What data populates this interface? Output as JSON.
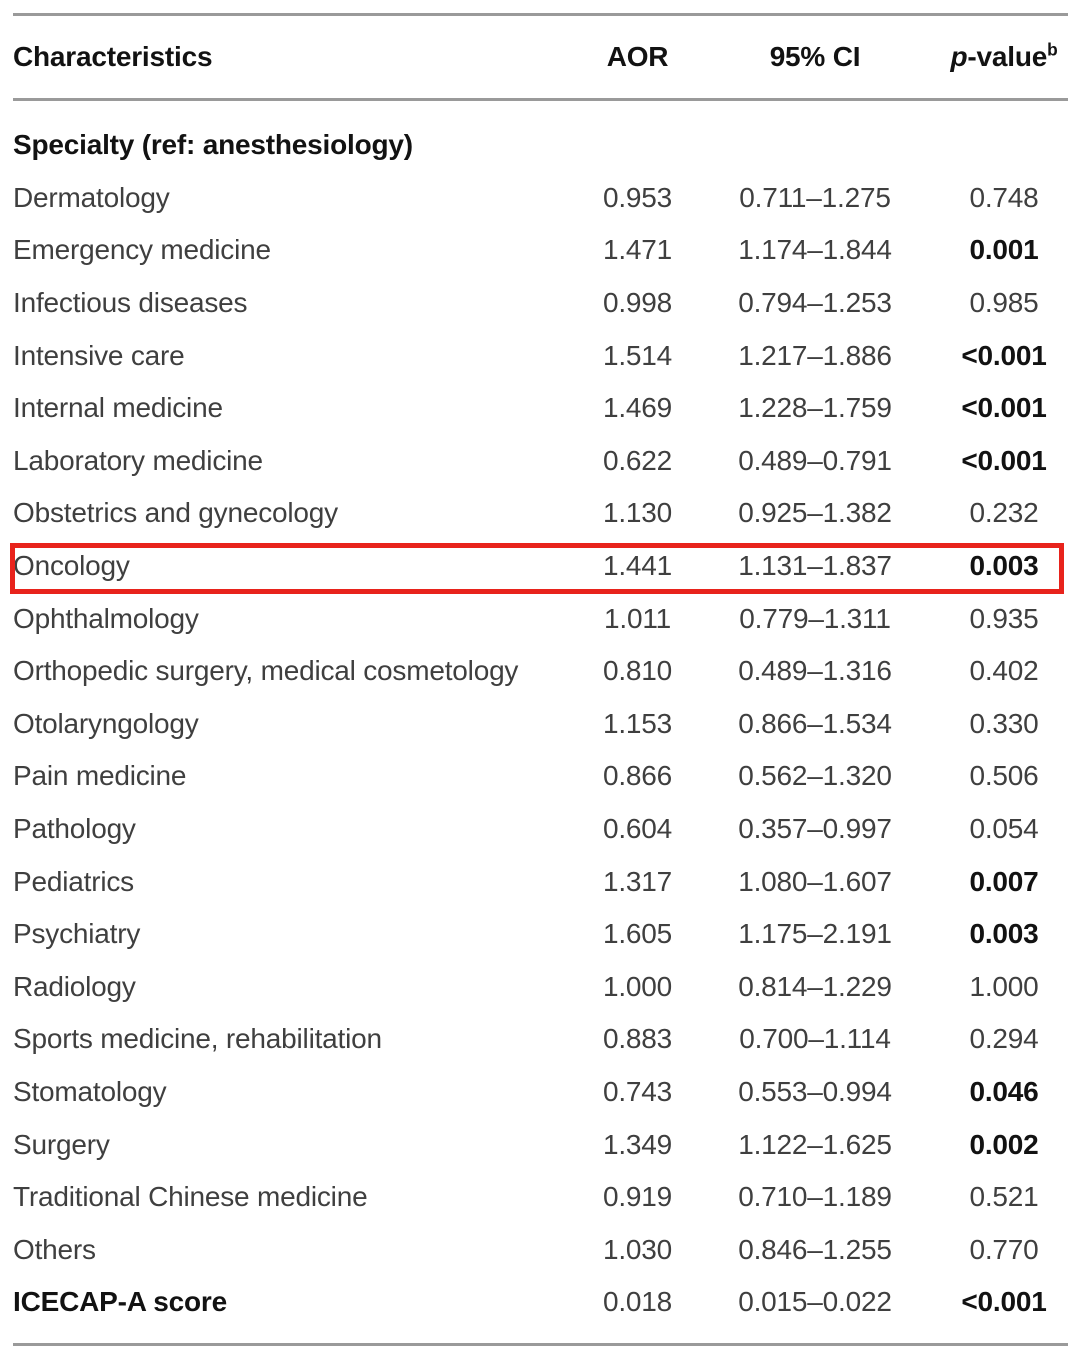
{
  "figure": {
    "type": "table",
    "colors": {
      "text_regular": "#3f3f3f",
      "text_bold": "#121212",
      "rule": "#9a9a9a",
      "highlight_border": "#e8231c",
      "background": "#ffffff"
    },
    "headers": {
      "characteristics": "Characteristics",
      "aor": "AOR",
      "ci": "95% CI",
      "p_italic": "p",
      "p_rest": "-value",
      "p_sup": "b"
    },
    "rows": [
      {
        "label": "Specialty (ref: anesthesiology)",
        "aor": "",
        "ci": "",
        "p": "",
        "section": true,
        "p_bold": false,
        "label_bold": false,
        "highlighted": false
      },
      {
        "label": "Dermatology",
        "aor": "0.953",
        "ci": "0.711–1.275",
        "p": "0.748",
        "section": false,
        "p_bold": false,
        "label_bold": false,
        "highlighted": false
      },
      {
        "label": "Emergency medicine",
        "aor": "1.471",
        "ci": "1.174–1.844",
        "p": "0.001",
        "section": false,
        "p_bold": true,
        "label_bold": false,
        "highlighted": false
      },
      {
        "label": "Infectious diseases",
        "aor": "0.998",
        "ci": "0.794–1.253",
        "p": "0.985",
        "section": false,
        "p_bold": false,
        "label_bold": false,
        "highlighted": false
      },
      {
        "label": "Intensive care",
        "aor": "1.514",
        "ci": "1.217–1.886",
        "p": "<0.001",
        "section": false,
        "p_bold": true,
        "label_bold": false,
        "highlighted": false
      },
      {
        "label": "Internal medicine",
        "aor": "1.469",
        "ci": "1.228–1.759",
        "p": "<0.001",
        "section": false,
        "p_bold": true,
        "label_bold": false,
        "highlighted": false
      },
      {
        "label": "Laboratory medicine",
        "aor": "0.622",
        "ci": "0.489–0.791",
        "p": "<0.001",
        "section": false,
        "p_bold": true,
        "label_bold": false,
        "highlighted": false
      },
      {
        "label": "Obstetrics and gynecology",
        "aor": "1.130",
        "ci": "0.925–1.382",
        "p": "0.232",
        "section": false,
        "p_bold": false,
        "label_bold": false,
        "highlighted": false
      },
      {
        "label": "Oncology",
        "aor": "1.441",
        "ci": "1.131–1.837",
        "p": "0.003",
        "section": false,
        "p_bold": true,
        "label_bold": false,
        "highlighted": true
      },
      {
        "label": "Ophthalmology",
        "aor": "1.011",
        "ci": "0.779–1.311",
        "p": "0.935",
        "section": false,
        "p_bold": false,
        "label_bold": false,
        "highlighted": false
      },
      {
        "label": "Orthopedic surgery, medical cosmetology",
        "aor": "0.810",
        "ci": "0.489–1.316",
        "p": "0.402",
        "section": false,
        "p_bold": false,
        "label_bold": false,
        "highlighted": false
      },
      {
        "label": "Otolaryngology",
        "aor": "1.153",
        "ci": "0.866–1.534",
        "p": "0.330",
        "section": false,
        "p_bold": false,
        "label_bold": false,
        "highlighted": false
      },
      {
        "label": "Pain medicine",
        "aor": "0.866",
        "ci": "0.562–1.320",
        "p": "0.506",
        "section": false,
        "p_bold": false,
        "label_bold": false,
        "highlighted": false
      },
      {
        "label": "Pathology",
        "aor": "0.604",
        "ci": "0.357–0.997",
        "p": "0.054",
        "section": false,
        "p_bold": false,
        "label_bold": false,
        "highlighted": false
      },
      {
        "label": "Pediatrics",
        "aor": "1.317",
        "ci": "1.080–1.607",
        "p": "0.007",
        "section": false,
        "p_bold": true,
        "label_bold": false,
        "highlighted": false
      },
      {
        "label": "Psychiatry",
        "aor": "1.605",
        "ci": "1.175–2.191",
        "p": "0.003",
        "section": false,
        "p_bold": true,
        "label_bold": false,
        "highlighted": false
      },
      {
        "label": "Radiology",
        "aor": "1.000",
        "ci": "0.814–1.229",
        "p": "1.000",
        "section": false,
        "p_bold": false,
        "label_bold": false,
        "highlighted": false
      },
      {
        "label": "Sports medicine, rehabilitation",
        "aor": "0.883",
        "ci": "0.700–1.114",
        "p": "0.294",
        "section": false,
        "p_bold": false,
        "label_bold": false,
        "highlighted": false
      },
      {
        "label": "Stomatology",
        "aor": "0.743",
        "ci": "0.553–0.994",
        "p": "0.046",
        "section": false,
        "p_bold": true,
        "label_bold": false,
        "highlighted": false
      },
      {
        "label": "Surgery",
        "aor": "1.349",
        "ci": "1.122–1.625",
        "p": "0.002",
        "section": false,
        "p_bold": true,
        "label_bold": false,
        "highlighted": false
      },
      {
        "label": "Traditional Chinese medicine",
        "aor": "0.919",
        "ci": "0.710–1.189",
        "p": "0.521",
        "section": false,
        "p_bold": false,
        "label_bold": false,
        "highlighted": false
      },
      {
        "label": "Others",
        "aor": "1.030",
        "ci": "0.846–1.255",
        "p": "0.770",
        "section": false,
        "p_bold": false,
        "label_bold": false,
        "highlighted": false
      },
      {
        "label": "ICECAP-A score",
        "aor": "0.018",
        "ci": "0.015–0.022",
        "p": "<0.001",
        "section": false,
        "p_bold": true,
        "label_bold": true,
        "highlighted": false
      }
    ]
  }
}
